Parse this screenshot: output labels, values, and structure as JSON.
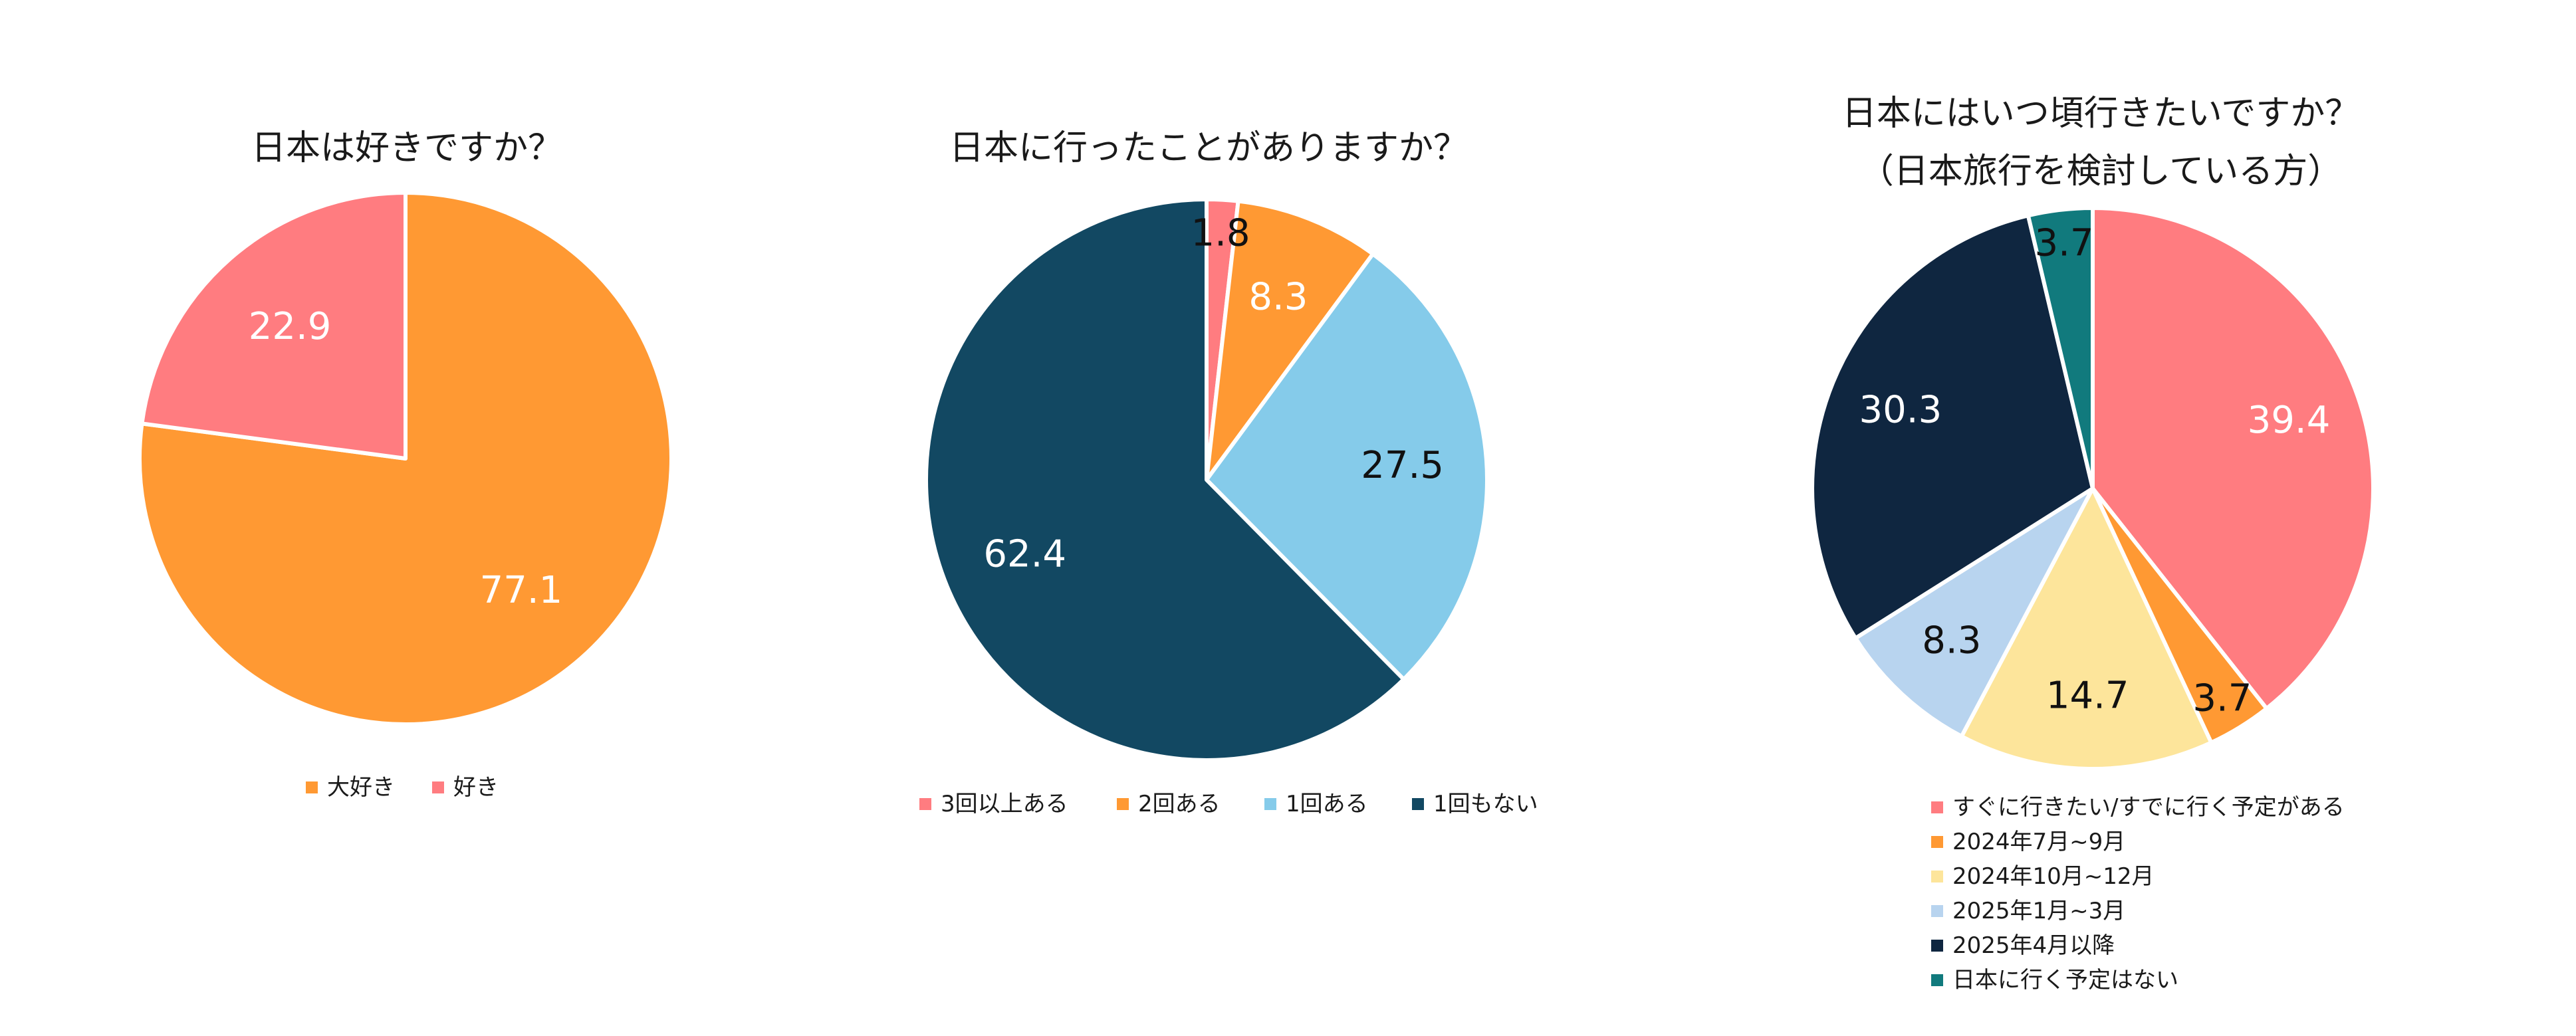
{
  "chart_data": [
    {
      "type": "pie",
      "title": "日本は好きですか？",
      "categories": [
        "大好き",
        "好き"
      ],
      "values": [
        77.1,
        22.9
      ],
      "colors": [
        "#FF9933",
        "#FF7C80"
      ],
      "label_colors": [
        "#ffffff",
        "#ffffff"
      ],
      "legend": "bottom"
    },
    {
      "type": "pie",
      "title": "日本に行ったことがありますか？",
      "categories": [
        "3回以上ある",
        "2回ある",
        "1回ある",
        "1回もない"
      ],
      "values": [
        1.8,
        8.3,
        27.5,
        62.4
      ],
      "colors": [
        "#FF7C80",
        "#FF9933",
        "#85CBEA",
        "#124862"
      ],
      "label_colors": [
        "#111111",
        "#ffffff",
        "#111111",
        "#ffffff"
      ],
      "legend": "bottom"
    },
    {
      "type": "pie",
      "title": "日本にはいつ頃行きたいですか？",
      "subtitle": "（日本旅行を検討している方）",
      "categories": [
        "すぐに行きたい/すでに行く予定がある",
        "2024年7月~9月",
        "2024年10月~12月",
        "2025年1月~3月",
        "2025年4月以降",
        "日本に行く予定はない"
      ],
      "values": [
        39.4,
        3.7,
        14.7,
        8.3,
        30.3,
        3.7
      ],
      "colors": [
        "#FF7C80",
        "#FF9933",
        "#FDE59B",
        "#B8D4EF",
        "#0F2640",
        "#117A7D"
      ],
      "label_colors": [
        "#ffffff",
        "#111111",
        "#111111",
        "#111111",
        "#ffffff",
        "#111111"
      ],
      "legend": "bottom"
    }
  ]
}
